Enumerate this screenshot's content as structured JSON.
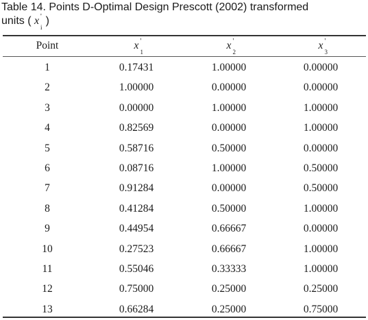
{
  "caption": {
    "line1": "Table 14. Points D-Optimal Design Prescott (2002) transformed",
    "line2_prefix": "units ( ",
    "symbol": "x",
    "prime": "'",
    "subscript": "i",
    "line2_suffix": " )"
  },
  "table": {
    "headers": [
      {
        "text": "Point"
      },
      {
        "var": "x",
        "prime": "'",
        "sub": "1"
      },
      {
        "var": "x",
        "prime": "'",
        "sub": "2"
      },
      {
        "var": "x",
        "prime": "'",
        "sub": "3"
      }
    ],
    "rows": [
      [
        "1",
        "0.17431",
        "1.00000",
        "0.00000"
      ],
      [
        "2",
        "1.00000",
        "0.00000",
        "0.00000"
      ],
      [
        "3",
        "0.00000",
        "1.00000",
        "1.00000"
      ],
      [
        "4",
        "0.82569",
        "0.00000",
        "1.00000"
      ],
      [
        "5",
        "0.58716",
        "0.50000",
        "0.00000"
      ],
      [
        "6",
        "0.08716",
        "1.00000",
        "0.50000"
      ],
      [
        "7",
        "0.91284",
        "0.00000",
        "0.50000"
      ],
      [
        "8",
        "0.41284",
        "0.50000",
        "1.00000"
      ],
      [
        "9",
        "0.44954",
        "0.66667",
        "0.00000"
      ],
      [
        "10",
        "0.27523",
        "0.66667",
        "1.00000"
      ],
      [
        "11",
        "0.55046",
        "0.33333",
        "1.00000"
      ],
      [
        "12",
        "0.75000",
        "0.25000",
        "0.25000"
      ],
      [
        "13",
        "0.66284",
        "0.25000",
        "0.75000"
      ]
    ]
  }
}
